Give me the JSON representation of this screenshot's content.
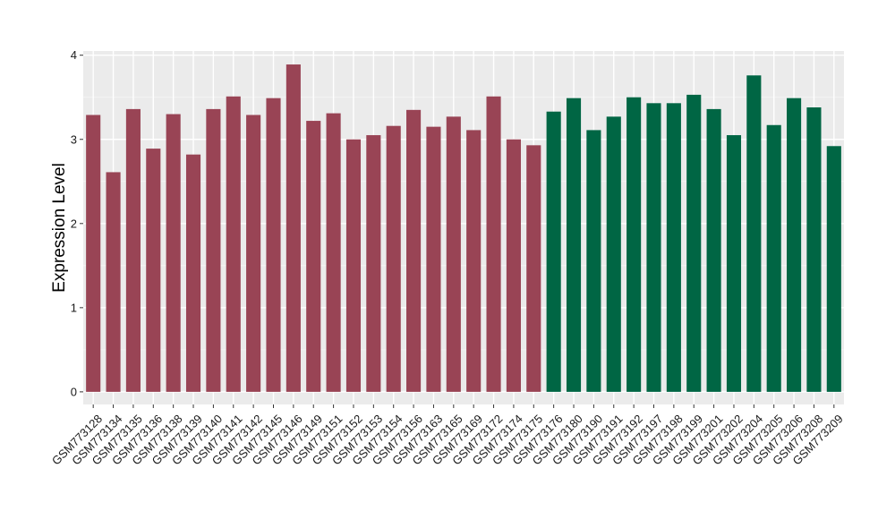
{
  "chart_data": {
    "type": "bar",
    "title": "",
    "xlabel": "",
    "ylabel": "Expression Level",
    "ylim": [
      -0.15,
      4.05
    ],
    "yticks": [
      0,
      1,
      2,
      3,
      4
    ],
    "grid": true,
    "panel_background": "#ebebeb",
    "categories": [
      "GSM773128",
      "GSM773134",
      "GSM773135",
      "GSM773136",
      "GSM773138",
      "GSM773139",
      "GSM773140",
      "GSM773141",
      "GSM773142",
      "GSM773145",
      "GSM773146",
      "GSM773149",
      "GSM773151",
      "GSM773152",
      "GSM773153",
      "GSM773154",
      "GSM773156",
      "GSM773163",
      "GSM773165",
      "GSM773169",
      "GSM773172",
      "GSM773174",
      "GSM773175",
      "GSM773176",
      "GSM773180",
      "GSM773190",
      "GSM773191",
      "GSM773192",
      "GSM773197",
      "GSM773198",
      "GSM773199",
      "GSM773201",
      "GSM773202",
      "GSM773204",
      "GSM773205",
      "GSM773206",
      "GSM773208",
      "GSM773209"
    ],
    "values": [
      3.29,
      2.61,
      3.36,
      2.89,
      3.3,
      2.82,
      3.36,
      3.51,
      3.29,
      3.49,
      3.89,
      3.22,
      3.31,
      3.0,
      3.05,
      3.16,
      3.35,
      3.15,
      3.27,
      3.11,
      3.51,
      3.0,
      2.93,
      3.33,
      3.49,
      3.11,
      3.27,
      3.5,
      3.43,
      3.43,
      3.53,
      3.36,
      3.05,
      3.76,
      3.17,
      3.49,
      3.38,
      2.92
    ],
    "groups": [
      0,
      0,
      0,
      0,
      0,
      0,
      0,
      0,
      0,
      0,
      0,
      0,
      0,
      0,
      0,
      0,
      0,
      0,
      0,
      0,
      0,
      0,
      0,
      1,
      1,
      1,
      1,
      1,
      1,
      1,
      1,
      1,
      1,
      1,
      1,
      1,
      1,
      1
    ],
    "colors": [
      "#994455",
      "#006644"
    ]
  }
}
